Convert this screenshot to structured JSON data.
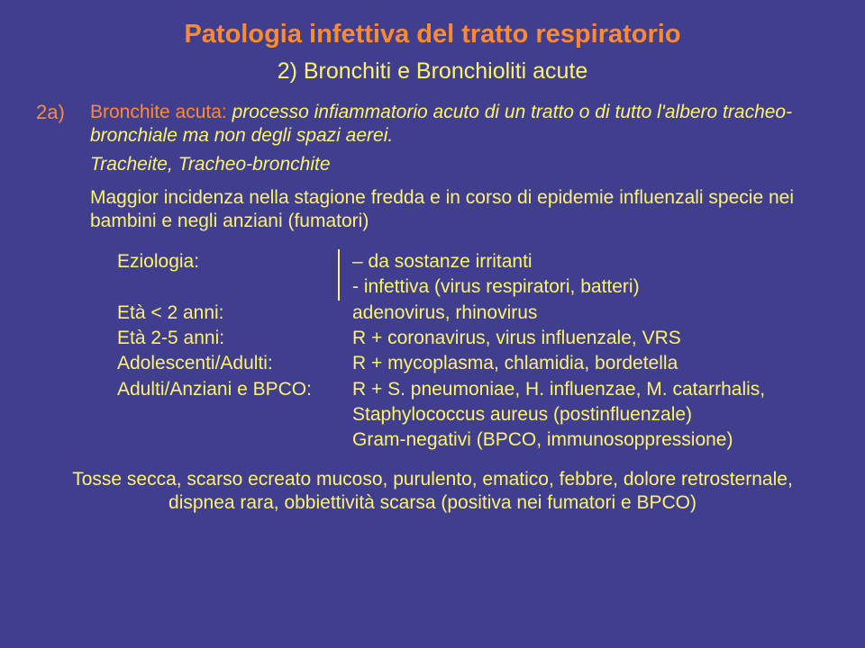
{
  "title": "Patologia infettiva del tratto respiratorio",
  "subtitle": "2) Bronchiti e Bronchioliti acute",
  "label2a": "2a)",
  "bronchite_label": "Bronchite acuta:",
  "bronchite_text": " processo infiammatorio acuto di un tratto o di tutto l'albero tracheo-bronchiale ma non degli spazi aerei.",
  "tracheite": "Tracheite, Tracheo-bronchite",
  "maggior": "Maggior incidenza nella stagione fredda e in corso di epidemie influenzali specie nei bambini e negli anziani (fumatori)",
  "rows": {
    "r0_label": "Eziologia:",
    "r0_val": "– da sostanze irritanti",
    "r1_val": "- infettiva (virus respiratori, batteri)",
    "r2_label": "Età < 2 anni:",
    "r2_val": "adenovirus, rhinovirus",
    "r3_label": "Età 2-5 anni:",
    "r3_val": "R + coronavirus, virus influenzale, VRS",
    "r4_label": "Adolescenti/Adulti:",
    "r4_val": "R + mycoplasma, chlamidia, bordetella",
    "r5_label": "Adulti/Anziani e BPCO:",
    "r5_val1": "R + S. pneumoniae, H. influenzae, M. catarrhalis,",
    "r5_val2": "Staphylococcus aureus (postinfluenzale)",
    "r5_val3": "Gram-negativi (BPCO, immunosoppressione)"
  },
  "bottom": "Tosse secca, scarso ecreato mucoso, purulento, ematico, febbre, dolore retrosternale, dispnea rara, obbiettività scarsa (positiva nei fumatori e BPCO)"
}
